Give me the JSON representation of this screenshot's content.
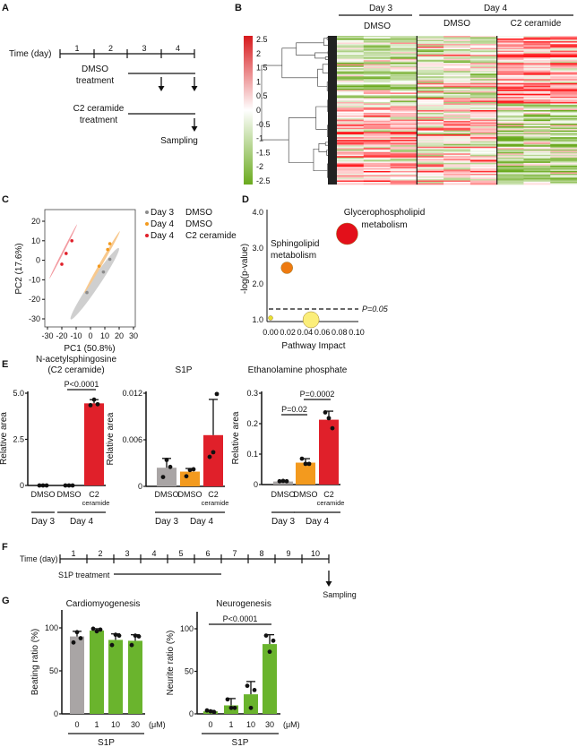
{
  "panels": {
    "A": "A",
    "B": "B",
    "C": "C",
    "D": "D",
    "E": "E",
    "F": "F",
    "G": "G"
  },
  "panelA": {
    "time_label": "Time (day)",
    "days": [
      "1",
      "2",
      "3",
      "4"
    ],
    "dmso_label": [
      "DMSO",
      "treatment"
    ],
    "c2_label": [
      "C2 ceramide",
      "treatment"
    ],
    "sampling": "Sampling"
  },
  "chart_data": [
    {
      "id": "heatmap",
      "type": "heatmap",
      "colorbar": {
        "min": -2.5,
        "max": 2.5,
        "ticks": [
          "2.5",
          "2",
          "1.5",
          "1",
          "0.5",
          "0",
          "-0.5",
          "-1",
          "-1.5",
          "-2",
          "-2.5"
        ],
        "low_color": "#6aaa1e",
        "mid_color": "#ffffff",
        "high_color": "#d7191c"
      },
      "day_groups": [
        {
          "label": "Day 3",
          "columns": 3
        },
        {
          "label": "Day 4",
          "columns": 6
        }
      ],
      "treatment_groups": [
        {
          "label": "DMSO",
          "columns": 3
        },
        {
          "label": "DMSO",
          "columns": 3
        },
        {
          "label": "C2 ceramide",
          "columns": 3
        }
      ],
      "dendrogram": true
    },
    {
      "id": "pca",
      "type": "scatter",
      "xlabel": "PC1 (50.8%)",
      "ylabel": "PC2 (17.6%)",
      "xlim": [
        -30,
        30
      ],
      "ylim": [
        -30,
        20
      ],
      "xticks": [
        "-30",
        "-20",
        "-10",
        "0",
        "10",
        "20",
        "30"
      ],
      "yticks": [
        "20",
        "10",
        "0",
        "-10",
        "-20",
        "-30"
      ],
      "legend_position": "right",
      "series": [
        {
          "name": "Day 3",
          "group": "DMSO",
          "color": "#8c8c8c",
          "points": [
            [
              -2.5,
              -16.5
            ],
            [
              9,
              -6
            ],
            [
              13.5,
              0.5
            ]
          ]
        },
        {
          "name": "Day 4",
          "group": "DMSO",
          "color": "#f39a1e",
          "points": [
            [
              6,
              -3
            ],
            [
              12,
              5.5
            ],
            [
              13.5,
              8.5
            ]
          ]
        },
        {
          "name": "Day 4",
          "group": "C2 ceramide",
          "color": "#e0202a",
          "points": [
            [
              -20,
              -2
            ],
            [
              -17,
              3.5
            ],
            [
              -13,
              10
            ]
          ]
        }
      ]
    },
    {
      "id": "pathway",
      "type": "scatter",
      "xlabel": "Pathway Impact",
      "ylabel": "-log(p-value)",
      "xlim": [
        0,
        0.1
      ],
      "ylim": [
        1,
        4
      ],
      "xticks": [
        "0.00",
        "0.02",
        "0.04",
        "0.06",
        "0.08",
        "0.10"
      ],
      "yticks": [
        "4.0",
        "3.0",
        "2.0",
        "1.0"
      ],
      "threshold": {
        "value": 1.3,
        "label": "P=0.05"
      },
      "points": [
        {
          "x": 0.0,
          "y": 1.05,
          "size": 1,
          "color": "#e8e030",
          "label": ""
        },
        {
          "x": 0.019,
          "y": 2.45,
          "size": 3,
          "color": "#ee7a10",
          "label": "Sphingolipid metabolism"
        },
        {
          "x": 0.047,
          "y": 1.0,
          "size": 5,
          "color": "#fbee7a",
          "label": ""
        },
        {
          "x": 0.089,
          "y": 3.4,
          "size": 6,
          "color": "#e3101a",
          "label": "Glycerophospholipid metabolism"
        }
      ],
      "annotations": {
        "glycero": [
          "Glycerophospholipid",
          "metabolism"
        ],
        "sphingo": [
          "Sphingolipid",
          "metabolism"
        ]
      }
    },
    {
      "id": "e1",
      "type": "bar",
      "title": [
        "N-acetylsphingosine",
        "(C2 ceramide)"
      ],
      "ylabel": "Relative area",
      "ylim": [
        0,
        5.0
      ],
      "yticks": [
        0,
        2.5,
        5.0
      ],
      "ytick_labels": [
        "0",
        "2.5",
        "5.0"
      ],
      "categories": [
        "DMSO",
        "DMSO",
        "C2"
      ],
      "category_sub": [
        "",
        "",
        "ceramide"
      ],
      "values": [
        0.0,
        0.0,
        4.45
      ],
      "errors": [
        0.0,
        0.0,
        0.2
      ],
      "points": [
        [
          0,
          0,
          0
        ],
        [
          0,
          0,
          0
        ],
        [
          4.35,
          4.65,
          4.4
        ]
      ],
      "colors": [
        "#a9a5a5",
        "#f39a1e",
        "#e0202a"
      ],
      "groups": [
        {
          "label": "Day 3",
          "bars": [
            0
          ]
        },
        {
          "label": "Day 4",
          "bars": [
            1,
            2
          ]
        }
      ],
      "pvalues": [
        {
          "from": 1,
          "to": 2,
          "label": "P<0.0001"
        }
      ]
    },
    {
      "id": "e2",
      "type": "bar",
      "title": [
        "S1P"
      ],
      "ylabel": "Relative area",
      "ylim": [
        0,
        0.012
      ],
      "yticks": [
        0,
        0.006,
        0.012
      ],
      "ytick_labels": [
        "0",
        "0.006",
        "0.012"
      ],
      "categories": [
        "DMSO",
        "DMSO",
        "C2"
      ],
      "category_sub": [
        "",
        "",
        "ceramide"
      ],
      "values": [
        0.0024,
        0.0019,
        0.0066
      ],
      "errors": [
        0.0012,
        0.0004,
        0.0046
      ],
      "points": [
        [
          0.0012,
          0.0034,
          0.0025
        ],
        [
          0.0013,
          0.0021,
          0.0022
        ],
        [
          0.0038,
          0.0044,
          0.0119
        ]
      ],
      "colors": [
        "#a9a5a5",
        "#f39a1e",
        "#e0202a"
      ],
      "groups": [
        {
          "label": "Day 3",
          "bars": [
            0
          ]
        },
        {
          "label": "Day 4",
          "bars": [
            1,
            2
          ]
        }
      ],
      "pvalues": []
    },
    {
      "id": "e3",
      "type": "bar",
      "title": [
        "Ethanolamine phosphate"
      ],
      "ylabel": "Relative area",
      "ylim": [
        0,
        0.3
      ],
      "yticks": [
        0,
        0.1,
        0.2,
        0.3
      ],
      "ytick_labels": [
        "0",
        "0.1",
        "0.2",
        "0.3"
      ],
      "categories": [
        "DMSO",
        "DMSO",
        "C2"
      ],
      "category_sub": [
        "",
        "",
        "ceramide"
      ],
      "values": [
        0.01,
        0.072,
        0.213
      ],
      "errors": [
        0.002,
        0.013,
        0.028
      ],
      "points": [
        [
          0.011,
          0.012,
          0.011
        ],
        [
          0.085,
          0.068,
          0.068
        ],
        [
          0.237,
          0.218,
          0.185
        ]
      ],
      "colors": [
        "#a9a5a5",
        "#f39a1e",
        "#e0202a"
      ],
      "groups": [
        {
          "label": "Day 3",
          "bars": [
            0
          ]
        },
        {
          "label": "Day 4",
          "bars": [
            1,
            2
          ]
        }
      ],
      "pvalues": [
        {
          "from": 0,
          "to": 1,
          "label": "P=0.02"
        },
        {
          "from": 1,
          "to": 2,
          "label": "P=0.0002"
        }
      ]
    },
    {
      "id": "g1",
      "type": "bar",
      "title": [
        "Cardiomyogenesis"
      ],
      "ylabel": "Beating ratio (%)",
      "ylim": [
        0,
        120
      ],
      "yticks": [
        0,
        50,
        100
      ],
      "ytick_labels": [
        "0",
        "50",
        "100"
      ],
      "categories": [
        "0",
        "1",
        "10",
        "30"
      ],
      "category_sub": [
        "",
        "",
        "",
        ""
      ],
      "unit": "(μM)",
      "values": [
        90,
        97,
        86,
        85
      ],
      "errors": [
        6,
        2,
        7,
        7
      ],
      "points": [
        [
          83,
          95,
          88
        ],
        [
          99,
          96,
          98
        ],
        [
          80,
          92,
          91
        ],
        [
          80,
          91,
          90
        ]
      ],
      "colors": [
        "#a9a5a5",
        "#6ab42d",
        "#6ab42d",
        "#6ab42d"
      ],
      "groups": [
        {
          "label": "S1P",
          "bars": [
            0,
            1,
            2,
            3
          ]
        }
      ],
      "pvalues": []
    },
    {
      "id": "g2",
      "type": "bar",
      "title": [
        "Neurogenesis"
      ],
      "ylabel": "Neurite ratio (%)",
      "ylim": [
        0,
        120
      ],
      "yticks": [
        0,
        50,
        100
      ],
      "ytick_labels": [
        "0",
        "50",
        "100"
      ],
      "categories": [
        "0",
        "1",
        "10",
        "30"
      ],
      "category_sub": [
        "",
        "",
        "",
        ""
      ],
      "unit": "(μM)",
      "values": [
        3,
        10,
        23,
        82
      ],
      "errors": [
        1,
        8,
        15,
        11
      ],
      "points": [
        [
          4,
          3,
          2
        ],
        [
          17,
          7,
          7
        ],
        [
          33,
          7,
          28
        ],
        [
          92,
          73,
          86
        ]
      ],
      "colors": [
        "#6ab42d",
        "#6ab42d",
        "#6ab42d",
        "#6ab42d"
      ],
      "groups": [
        {
          "label": "S1P",
          "bars": [
            0,
            1,
            2,
            3
          ]
        }
      ],
      "pvalues": [
        {
          "from": 0,
          "to": 3,
          "label": "P<0.0001"
        }
      ]
    }
  ],
  "panelF": {
    "time_label": "Time (day)",
    "days": [
      "1",
      "2",
      "3",
      "4",
      "5",
      "6",
      "7",
      "8",
      "9",
      "10"
    ],
    "treatment": "S1P treatment",
    "sampling": "Sampling"
  }
}
